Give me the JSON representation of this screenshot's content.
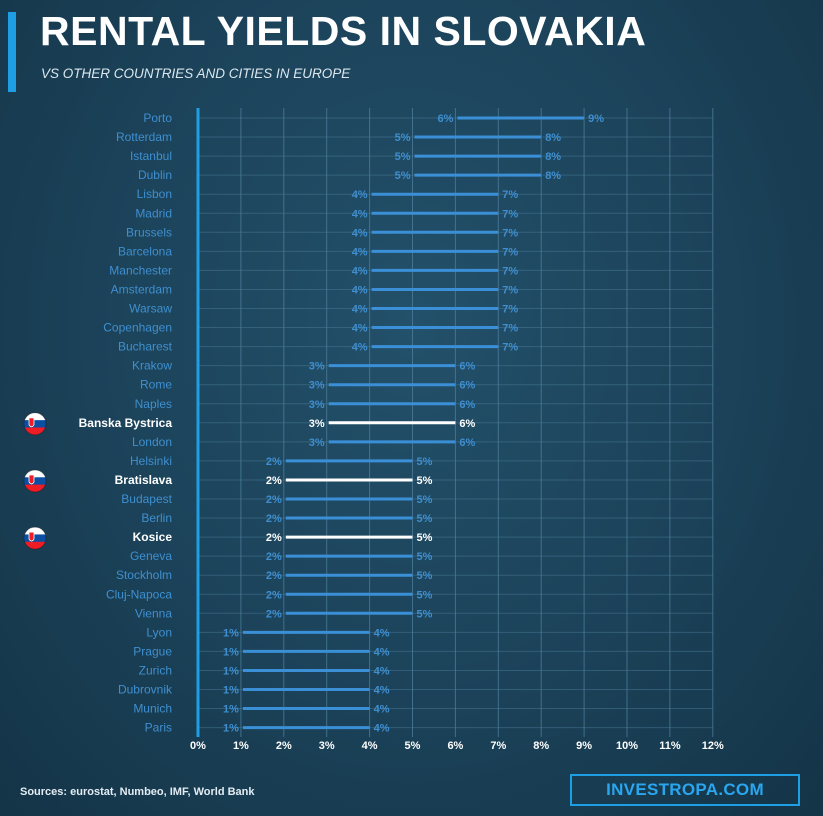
{
  "header": {
    "title": "RENTAL YIELDS IN SLOVAKIA",
    "subtitle": "VS OTHER COUNTRIES AND CITIES IN EUROPE"
  },
  "footer": {
    "sources": "Sources: eurostat, Numbeo, IMF, World Bank",
    "brand": "INVESTROPA.COM"
  },
  "colors": {
    "background": "#1b4259",
    "accent": "#1e9fe3",
    "range_bar": "#3a8fd6",
    "highlight_bar": "#ffffff",
    "label_dim": "#3f8fd0",
    "gridline": "#4f7f9c"
  },
  "chart_data": {
    "type": "range-bar",
    "orientation": "horizontal",
    "title": "RENTAL YIELDS IN SLOVAKIA",
    "subtitle": "VS OTHER COUNTRIES AND CITIES IN EUROPE",
    "xlim": [
      0,
      12
    ],
    "x_ticks": [
      "0%",
      "1%",
      "2%",
      "3%",
      "4%",
      "5%",
      "6%",
      "7%",
      "8%",
      "9%",
      "10%",
      "11%",
      "12%"
    ],
    "grid": true,
    "unit": "%",
    "rows": [
      {
        "city": "Porto",
        "low": 6,
        "high": 9,
        "highlight": false
      },
      {
        "city": "Rotterdam",
        "low": 5,
        "high": 8,
        "highlight": false
      },
      {
        "city": "Istanbul",
        "low": 5,
        "high": 8,
        "highlight": false
      },
      {
        "city": "Dublin",
        "low": 5,
        "high": 8,
        "highlight": false
      },
      {
        "city": "Lisbon",
        "low": 4,
        "high": 7,
        "highlight": false
      },
      {
        "city": "Madrid",
        "low": 4,
        "high": 7,
        "highlight": false
      },
      {
        "city": "Brussels",
        "low": 4,
        "high": 7,
        "highlight": false
      },
      {
        "city": "Barcelona",
        "low": 4,
        "high": 7,
        "highlight": false
      },
      {
        "city": "Manchester",
        "low": 4,
        "high": 7,
        "highlight": false
      },
      {
        "city": "Amsterdam",
        "low": 4,
        "high": 7,
        "highlight": false
      },
      {
        "city": "Warsaw",
        "low": 4,
        "high": 7,
        "highlight": false
      },
      {
        "city": "Copenhagen",
        "low": 4,
        "high": 7,
        "highlight": false
      },
      {
        "city": "Bucharest",
        "low": 4,
        "high": 7,
        "highlight": false
      },
      {
        "city": "Krakow",
        "low": 3,
        "high": 6,
        "highlight": false
      },
      {
        "city": "Rome",
        "low": 3,
        "high": 6,
        "highlight": false
      },
      {
        "city": "Naples",
        "low": 3,
        "high": 6,
        "highlight": false
      },
      {
        "city": "Banska Bystrica",
        "low": 3,
        "high": 6,
        "highlight": true
      },
      {
        "city": "London",
        "low": 3,
        "high": 6,
        "highlight": false
      },
      {
        "city": "Helsinki",
        "low": 2,
        "high": 5,
        "highlight": false
      },
      {
        "city": "Bratislava",
        "low": 2,
        "high": 5,
        "highlight": true
      },
      {
        "city": "Budapest",
        "low": 2,
        "high": 5,
        "highlight": false
      },
      {
        "city": "Berlin",
        "low": 2,
        "high": 5,
        "highlight": false
      },
      {
        "city": "Kosice",
        "low": 2,
        "high": 5,
        "highlight": true
      },
      {
        "city": "Geneva",
        "low": 2,
        "high": 5,
        "highlight": false
      },
      {
        "city": "Stockholm",
        "low": 2,
        "high": 5,
        "highlight": false
      },
      {
        "city": "Cluj-Napoca",
        "low": 2,
        "high": 5,
        "highlight": false
      },
      {
        "city": "Vienna",
        "low": 2,
        "high": 5,
        "highlight": false
      },
      {
        "city": "Lyon",
        "low": 1,
        "high": 4,
        "highlight": false
      },
      {
        "city": "Prague",
        "low": 1,
        "high": 4,
        "highlight": false
      },
      {
        "city": "Zurich",
        "low": 1,
        "high": 4,
        "highlight": false
      },
      {
        "city": "Dubrovnik",
        "low": 1,
        "high": 4,
        "highlight": false
      },
      {
        "city": "Munich",
        "low": 1,
        "high": 4,
        "highlight": false
      },
      {
        "city": "Paris",
        "low": 1,
        "high": 4,
        "highlight": false
      }
    ]
  }
}
